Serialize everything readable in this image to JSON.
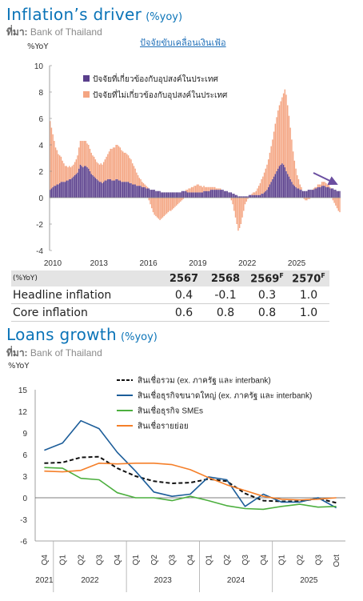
{
  "inflation": {
    "title": "Inflation’s driver",
    "title_unit": "(%yoy)",
    "source_label": "ที่มา:",
    "source": "Bank of Thailand",
    "link_text": "ปัจจัยขับเคลื่อนเงินเฟ้อ",
    "unit": "%YoY",
    "colors": {
      "core_factor": "#5a3f8c",
      "noncore_factor": "#f4a582",
      "arrow": "#6a4ea0"
    }
  },
  "forecast_table": {
    "header_label": "(%YoY)",
    "years": [
      "2567",
      "2568",
      "2569",
      "2570"
    ],
    "forecast_mark": "F",
    "rows": [
      {
        "label": "Headline inflation",
        "values": [
          "0.4",
          "-0.1",
          "0.3",
          "1.0"
        ]
      },
      {
        "label": "Core inflation",
        "values": [
          "0.6",
          "0.8",
          "0.8",
          "1.0"
        ]
      }
    ]
  },
  "loans": {
    "title": "Loans growth",
    "title_unit": "(%yoy)",
    "source_label": "ที่มา:",
    "source": "Bank of Thailand",
    "unit": "%YoY"
  },
  "chart_data": [
    {
      "type": "bar",
      "stacked": true,
      "ylim": [
        -4,
        10
      ],
      "yticks": [
        -4,
        -2,
        0,
        2,
        4,
        6,
        8,
        10
      ],
      "year_ticks": [
        "2010",
        "2013",
        "2016",
        "2019",
        "2022",
        "2025"
      ],
      "period": "2010-01 to 2025-10 (monthly)",
      "series": [
        {
          "name": "ปัจจัยที่เกี่ยวข้องกับอุปสงค์ในประเทศ",
          "color": "#5a3f8c",
          "values": [
            0.6,
            0.7,
            0.8,
            0.9,
            0.9,
            1.0,
            1.0,
            1.1,
            1.2,
            1.2,
            1.2,
            1.2,
            1.3,
            1.3,
            1.4,
            1.4,
            1.5,
            1.6,
            1.7,
            1.8,
            1.9,
            2.2,
            2.5,
            2.4,
            2.3,
            2.4,
            2.4,
            2.3,
            2.2,
            2.0,
            1.8,
            1.7,
            1.6,
            1.5,
            1.4,
            1.3,
            1.2,
            1.2,
            1.1,
            1.2,
            1.3,
            1.3,
            1.4,
            1.4,
            1.4,
            1.3,
            1.3,
            1.3,
            1.4,
            1.4,
            1.3,
            1.3,
            1.2,
            1.2,
            1.2,
            1.2,
            1.2,
            1.2,
            1.1,
            1.1,
            1.0,
            1.0,
            1.0,
            0.9,
            0.9,
            0.9,
            0.9,
            0.8,
            0.8,
            0.8,
            0.7,
            0.7,
            0.7,
            0.6,
            0.6,
            0.6,
            0.6,
            0.5,
            0.5,
            0.5,
            0.5,
            0.4,
            0.4,
            0.4,
            0.4,
            0.4,
            0.4,
            0.4,
            0.4,
            0.4,
            0.4,
            0.4,
            0.4,
            0.4,
            0.4,
            0.4,
            0.5,
            0.5,
            0.5,
            0.5,
            0.4,
            0.4,
            0.4,
            0.4,
            0.4,
            0.4,
            0.4,
            0.4,
            0.4,
            0.4,
            0.4,
            0.4,
            0.5,
            0.5,
            0.5,
            0.5,
            0.5,
            0.6,
            0.6,
            0.6,
            0.6,
            0.6,
            0.6,
            0.6,
            0.6,
            0.6,
            0.6,
            0.5,
            0.5,
            0.5,
            0.4,
            0.4,
            0.4,
            0.3,
            0.3,
            0.2,
            0.2,
            0.1,
            0.1,
            0.1,
            0.1,
            0.1,
            0.1,
            0.1,
            0.1,
            0.2,
            0.2,
            0.2,
            0.2,
            0.2,
            0.2,
            0.2,
            0.2,
            0.2,
            0.3,
            0.3,
            0.4,
            0.5,
            0.6,
            0.8,
            1.0,
            1.2,
            1.4,
            1.6,
            1.8,
            2.0,
            2.2,
            2.4,
            2.5,
            2.6,
            2.5,
            2.3,
            2.0,
            1.8,
            1.6,
            1.4,
            1.2,
            1.0,
            0.9,
            0.8,
            0.7,
            0.7,
            0.6,
            0.6,
            0.5,
            0.5,
            0.5,
            0.5,
            0.6,
            0.6,
            0.6,
            0.6,
            0.6,
            0.7,
            0.7,
            0.8,
            0.8,
            0.8,
            0.9,
            0.9,
            0.9,
            0.8,
            0.8,
            0.8,
            0.7,
            0.7,
            0.7,
            0.6,
            0.6,
            0.5,
            0.5,
            0.5
          ]
        },
        {
          "name": "ปัจจัยที่ไม่เกี่ยวข้องกับอุปสงค์ในประเทศ",
          "color": "#f4a582",
          "values": [
            5.2,
            4.6,
            4.0,
            3.4,
            2.9,
            2.6,
            2.3,
            2.1,
            1.9,
            1.6,
            1.4,
            1.2,
            1.1,
            1.0,
            1.0,
            0.9,
            0.9,
            0.9,
            1.0,
            1.1,
            1.3,
            1.6,
            1.8,
            1.9,
            2.0,
            1.9,
            1.9,
            1.8,
            1.8,
            1.7,
            1.6,
            1.5,
            1.5,
            1.4,
            1.3,
            1.3,
            1.3,
            1.4,
            1.4,
            1.5,
            1.6,
            1.8,
            1.9,
            2.1,
            2.3,
            2.4,
            2.5,
            2.5,
            2.6,
            2.6,
            2.6,
            2.5,
            2.4,
            2.3,
            2.2,
            2.2,
            2.1,
            2.0,
            1.9,
            1.8,
            1.6,
            1.4,
            1.2,
            1.0,
            0.8,
            0.6,
            0.5,
            0.4,
            0.3,
            0.2,
            0.2,
            0.1,
            -0.2,
            -0.5,
            -0.8,
            -1.1,
            -1.3,
            -1.4,
            -1.5,
            -1.6,
            -1.7,
            -1.6,
            -1.5,
            -1.4,
            -1.3,
            -1.2,
            -1.1,
            -1.0,
            -1.0,
            -0.9,
            -0.8,
            -0.7,
            -0.6,
            -0.5,
            -0.4,
            -0.3,
            -0.2,
            -0.1,
            0.0,
            0.1,
            0.2,
            0.3,
            0.3,
            0.4,
            0.4,
            0.5,
            0.5,
            0.6,
            0.6,
            0.5,
            0.5,
            0.4,
            0.4,
            0.3,
            0.3,
            0.3,
            0.3,
            0.2,
            0.2,
            0.2,
            0.2,
            0.1,
            0.1,
            0.1,
            0.1,
            0.0,
            0.0,
            0.0,
            0.0,
            0.0,
            0.0,
            0.0,
            -0.2,
            -0.5,
            -1.0,
            -1.5,
            -2.0,
            -2.5,
            -2.3,
            -2.0,
            -1.5,
            -1.0,
            -0.5,
            -0.3,
            -0.1,
            0.0,
            0.0,
            0.1,
            0.2,
            0.2,
            0.3,
            0.5,
            0.7,
            0.9,
            1.1,
            1.3,
            1.5,
            1.7,
            1.9,
            2.1,
            2.4,
            2.7,
            3.0,
            3.4,
            3.8,
            4.1,
            4.4,
            4.6,
            4.8,
            5.0,
            5.4,
            5.9,
            5.8,
            5.2,
            4.6,
            3.9,
            3.2,
            2.5,
            1.9,
            1.4,
            1.0,
            0.7,
            0.4,
            0.2,
            0.0,
            -0.1,
            -0.2,
            -0.2,
            -0.1,
            -0.1,
            0.0,
            0.0,
            0.1,
            0.1,
            0.1,
            0.2,
            0.2,
            0.2,
            0.3,
            0.3,
            0.3,
            0.3,
            0.2,
            0.2,
            0.1,
            0.0,
            -0.2,
            -0.4,
            -0.6,
            -0.8,
            -1.0,
            -1.1,
            -1.2,
            -1.2,
            -1.2,
            -1.1,
            -1.0
          ]
        }
      ]
    },
    {
      "type": "line",
      "ylim": [
        -6,
        15
      ],
      "yticks": [
        -6,
        -3,
        0,
        3,
        6,
        9,
        12,
        15
      ],
      "x": [
        "Q4",
        "Q1",
        "Q2",
        "Q3",
        "Q4",
        "Q1",
        "Q2",
        "Q3",
        "Q4",
        "Q1",
        "Q2",
        "Q3",
        "Q4",
        "Q1",
        "Q2",
        "Q3",
        "Oct"
      ],
      "year_groups": [
        {
          "label": "2021",
          "count": 1
        },
        {
          "label": "2022",
          "count": 4
        },
        {
          "label": "2023",
          "count": 4
        },
        {
          "label": "2024",
          "count": 4
        },
        {
          "label": "2025",
          "count": 4
        }
      ],
      "legend_position": "top-right",
      "series": [
        {
          "name": "สินเชื่อรวม (ex. ภาครัฐ และ interbank)",
          "color": "#111111",
          "style": "dashed",
          "values": [
            4.8,
            4.9,
            5.6,
            5.7,
            4.1,
            3.0,
            2.3,
            2.0,
            2.1,
            2.6,
            2.3,
            0.6,
            -0.4,
            -0.5,
            -0.5,
            -0.1,
            -0.7
          ]
        },
        {
          "name": "สินเชื่อธุรกิจขนาดใหญ่ (ex. ภาครัฐ และ interbank)",
          "color": "#1c5d99",
          "style": "solid",
          "values": [
            6.6,
            7.6,
            10.7,
            9.6,
            6.3,
            3.7,
            0.8,
            0.2,
            0.5,
            2.9,
            2.5,
            -1.2,
            0.5,
            -0.6,
            -0.6,
            0.0,
            -1.4
          ]
        },
        {
          "name": "สินเชื่อธุรกิจ SMEs",
          "color": "#4caf3e",
          "style": "solid",
          "values": [
            4.2,
            4.1,
            2.7,
            2.5,
            0.7,
            0.0,
            0.0,
            -0.4,
            0.2,
            -0.4,
            -1.1,
            -1.5,
            -1.6,
            -1.2,
            -0.9,
            -1.3,
            -1.2
          ]
        },
        {
          "name": "สินเชื่อรายย่อย",
          "color": "#f57f29",
          "style": "solid",
          "values": [
            3.7,
            3.6,
            3.8,
            4.8,
            4.7,
            4.8,
            4.8,
            4.6,
            3.9,
            2.8,
            1.8,
            1.0,
            0.2,
            -0.2,
            -0.3,
            -0.2,
            0.0
          ]
        }
      ]
    }
  ]
}
